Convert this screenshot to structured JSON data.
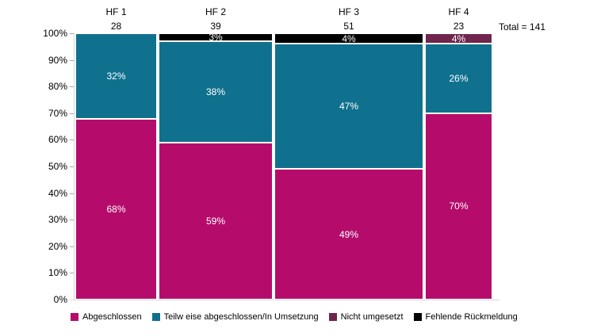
{
  "page": {
    "background": "#FFFFFF"
  },
  "chart_data": {
    "type": "mosaic",
    "title": "",
    "categories": [
      "HF 1",
      "HF 2",
      "HF 3",
      "HF 4"
    ],
    "counts": [
      28,
      39,
      51,
      23
    ],
    "total": 141,
    "total_label": "Total = 141",
    "value_suffix": "%",
    "ylim": [
      0,
      100
    ],
    "grid": false,
    "legend_position": "bottom",
    "bar_widths_proportional_to_counts": true,
    "y_ticks": [
      "0%",
      "10%",
      "20%",
      "30%",
      "40%",
      "50%",
      "60%",
      "70%",
      "80%",
      "90%",
      "100%"
    ],
    "series": [
      {
        "name": "Abgeschlossen",
        "color": "#B50C6C",
        "values": [
          68,
          59,
          49,
          70
        ]
      },
      {
        "name": "Teilw eise abgeschlossen/In Umsetzung",
        "color": "#10718F",
        "values": [
          32,
          38,
          47,
          26
        ]
      },
      {
        "name": "Nicht umgesetzt",
        "color": "#6F254C",
        "values": [
          0,
          0,
          0,
          4
        ]
      },
      {
        "name": "Fehlende Rückmeldung",
        "color": "#000000",
        "values": [
          0,
          3,
          4,
          0
        ]
      }
    ],
    "segment_labels": [
      [
        "68%",
        "59%",
        "49%",
        "70%"
      ],
      [
        "32%",
        "38%",
        "47%",
        "26%"
      ],
      [
        "",
        "",
        "",
        "4%"
      ],
      [
        "",
        "3%",
        "4%",
        ""
      ]
    ],
    "axis_color": "#D9D9D9",
    "tick_color": "#A6A6A6",
    "segment_label_color": "#FFFFFF"
  }
}
